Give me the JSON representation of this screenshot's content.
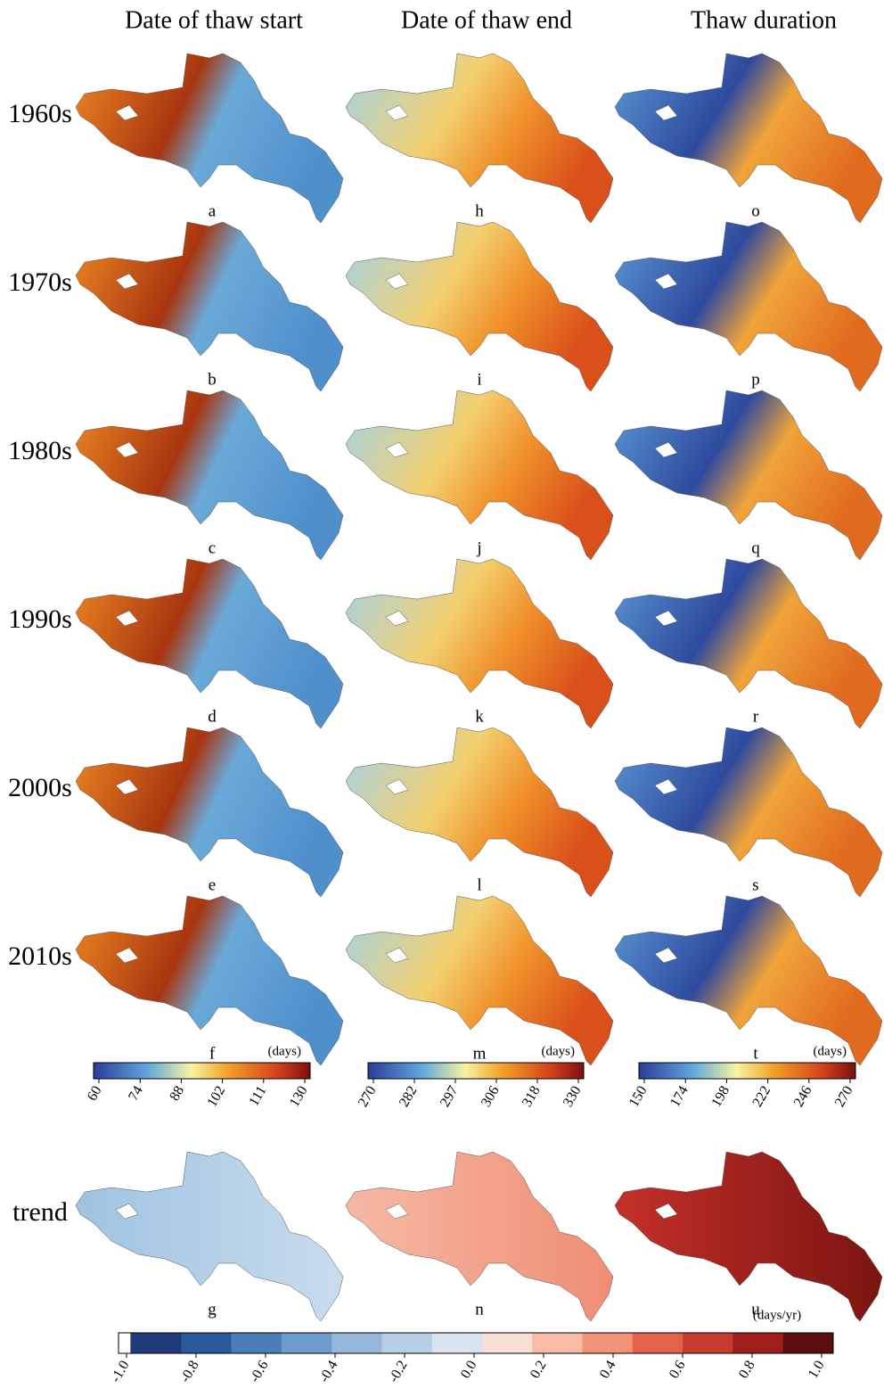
{
  "column_titles": [
    "Date of thaw start",
    "Date of thaw end",
    "Thaw duration"
  ],
  "row_labels": [
    "1960s",
    "1970s",
    "1980s",
    "1990s",
    "2000s",
    "2010s",
    "trend"
  ],
  "panel_letters": [
    [
      "a",
      "h",
      "o"
    ],
    [
      "b",
      "i",
      "p"
    ],
    [
      "c",
      "j",
      "q"
    ],
    [
      "d",
      "k",
      "r"
    ],
    [
      "e",
      "l",
      "s"
    ],
    [
      "f",
      "m",
      "t"
    ],
    [
      "g",
      "n",
      "u"
    ]
  ],
  "colorbars": [
    {
      "unit": "(days)",
      "ticks": [
        60,
        74,
        88,
        102,
        111,
        130
      ]
    },
    {
      "unit": "(days)",
      "ticks": [
        270,
        282,
        297,
        306,
        318,
        330
      ]
    },
    {
      "unit": "(days)",
      "ticks": [
        150,
        174,
        198,
        222,
        246,
        270
      ]
    }
  ],
  "trend_colorbar": {
    "unit": "(days/yr)",
    "ticks": [
      {
        "value": -1,
        "label": "-1.0"
      },
      -0.8,
      -0.6,
      -0.4,
      -0.2,
      {
        "value": 0,
        "label": "0.0"
      },
      0.2,
      0.4,
      0.6,
      0.8,
      {
        "value": 1,
        "label": "1.0"
      }
    ]
  }
}
